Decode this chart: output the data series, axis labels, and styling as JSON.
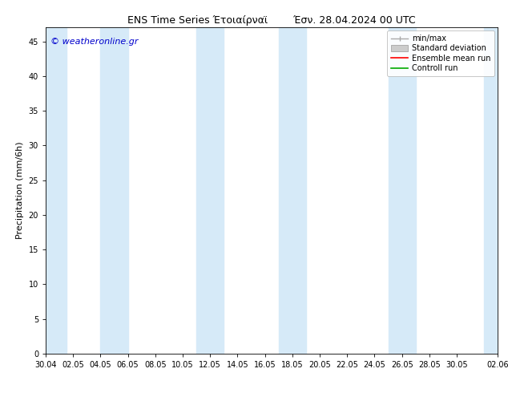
{
  "title_left": "ENS Time Series Έτοιαίρναϊ",
  "title_right": "Έσν. 28.04.2024 00 UTC",
  "ylabel": "Precipitation (mm/6h)",
  "watermark": "© weatheronline.gr",
  "ylim": [
    0,
    47
  ],
  "yticks": [
    0,
    5,
    10,
    15,
    20,
    25,
    30,
    35,
    40,
    45
  ],
  "xtick_labels": [
    "30.04",
    "02.05",
    "04.05",
    "06.05",
    "08.05",
    "10.05",
    "12.05",
    "14.05",
    "16.05",
    "18.05",
    "20.05",
    "22.05",
    "24.05",
    "26.05",
    "28.05",
    "30.05",
    "02.06"
  ],
  "xtick_positions": [
    0,
    2,
    4,
    6,
    8,
    10,
    12,
    14,
    16,
    18,
    20,
    22,
    24,
    26,
    28,
    30,
    33
  ],
  "shaded_bands": [
    [
      0,
      1.5
    ],
    [
      4,
      6
    ],
    [
      11,
      13
    ],
    [
      17,
      19
    ],
    [
      25,
      27
    ],
    [
      32,
      35
    ]
  ],
  "shaded_color": "#d6eaf8",
  "bg_color": "#ffffff",
  "plot_bg_color": "#ffffff",
  "border_color": "#000000",
  "legend_labels": [
    "min/max",
    "Standard deviation",
    "Ensemble mean run",
    "Controll run"
  ],
  "minmax_line_color": "#aaaaaa",
  "std_fill_color": "#cccccc",
  "mean_line_color": "#ff0000",
  "control_line_color": "#00aa00",
  "title_fontsize": 9,
  "tick_fontsize": 7,
  "ylabel_fontsize": 8,
  "watermark_color": "#0000cc",
  "watermark_fontsize": 8,
  "legend_fontsize": 7
}
